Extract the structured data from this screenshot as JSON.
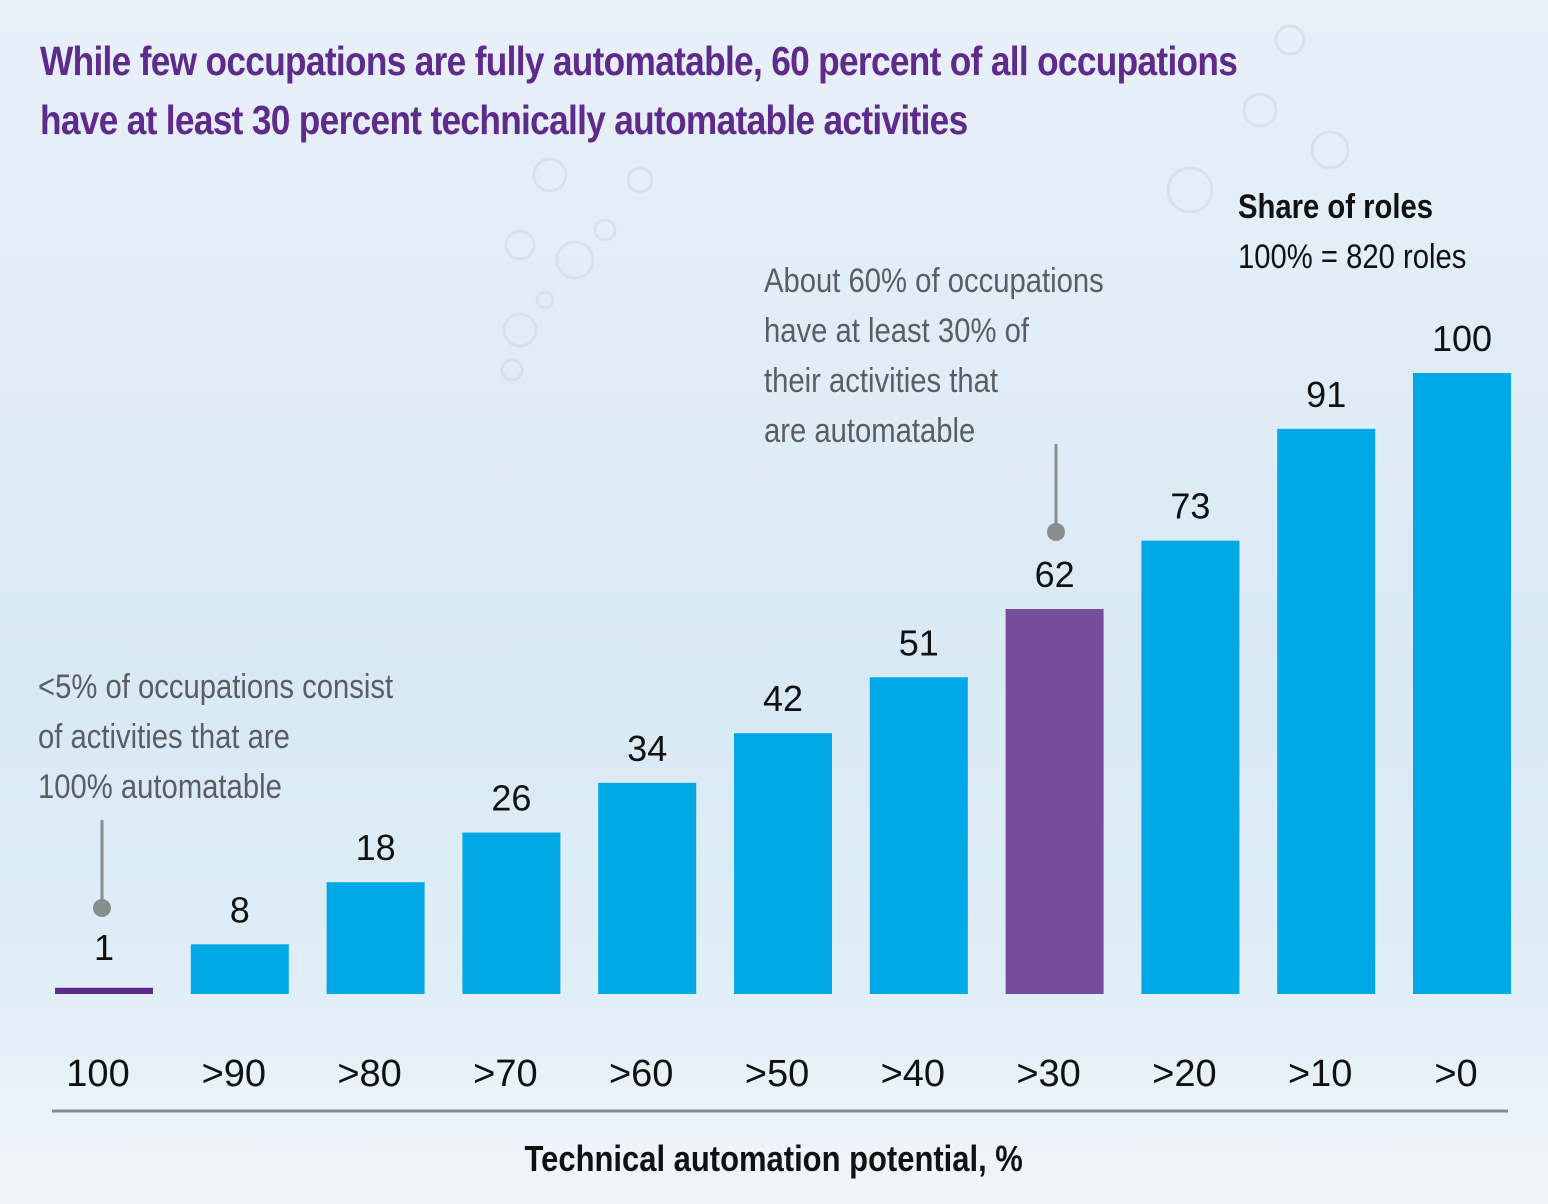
{
  "title": {
    "line1": "While few occupations are fully automatable, 60 percent of all occupations",
    "line2": "have at least 30 percent technically automatable activities"
  },
  "legend": {
    "title": "Share of roles",
    "subtitle": "100% = 820 roles"
  },
  "annotations": [
    {
      "lines": [
        "About 60% of occupations",
        "have at least 30% of",
        "their activities that",
        "are automatable"
      ],
      "target_category": ">30"
    },
    {
      "lines": [
        "<5% of occupations consist",
        "of activities that are",
        "100% automatable"
      ],
      "target_category": "100"
    }
  ],
  "colors": {
    "title": "#5e2a8c",
    "bar_default": "#00a9e6",
    "bar_highlight": "#774c9a",
    "bar_first": "#5e2a8c",
    "annotation_text": "#5a5e62",
    "leader_line": "#888e8e",
    "axis_line": "#868c8c"
  },
  "chart_data": {
    "type": "bar",
    "title": "While few occupations are fully automatable, 60 percent of all occupations have at least 30 percent technically automatable activities",
    "xlabel": "Technical automation potential, %",
    "ylabel": "Share of roles (100% = 820 roles)",
    "categories": [
      "100",
      ">90",
      ">80",
      ">70",
      ">60",
      ">50",
      ">40",
      ">30",
      ">20",
      ">10",
      ">0"
    ],
    "values": [
      1,
      8,
      18,
      26,
      34,
      42,
      51,
      62,
      73,
      91,
      100
    ],
    "highlight": [
      0,
      7
    ],
    "ylim": [
      0,
      100
    ],
    "grid": false,
    "legend": "top-right"
  }
}
